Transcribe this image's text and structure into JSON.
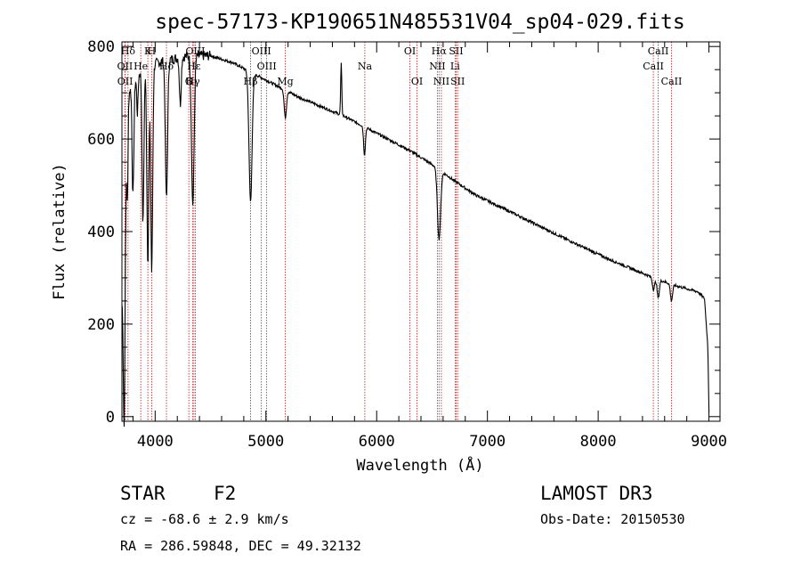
{
  "chart_data": {
    "type": "line",
    "title": "spec-57173-KP190651N485531V04_sp04-029.fits",
    "xlabel": "Wavelength (Å)",
    "ylabel": "Flux (relative)",
    "xlim": [
      3700,
      9100
    ],
    "ylim": [
      -10,
      810
    ],
    "xticks": [
      4000,
      5000,
      6000,
      7000,
      8000,
      9000
    ],
    "yticks": [
      0,
      200,
      400,
      600,
      800
    ],
    "continuum": [
      [
        3700,
        260
      ],
      [
        3760,
        700
      ],
      [
        3850,
        740
      ],
      [
        3950,
        760
      ],
      [
        4100,
        770
      ],
      [
        4300,
        780
      ],
      [
        4500,
        780
      ],
      [
        4700,
        765
      ],
      [
        4900,
        740
      ],
      [
        5100,
        715
      ],
      [
        5300,
        690
      ],
      [
        5500,
        670
      ],
      [
        5700,
        650
      ],
      [
        5900,
        625
      ],
      [
        6100,
        600
      ],
      [
        6300,
        575
      ],
      [
        6500,
        545
      ],
      [
        6700,
        510
      ],
      [
        6900,
        478
      ],
      [
        7100,
        455
      ],
      [
        7300,
        432
      ],
      [
        7500,
        408
      ],
      [
        7700,
        385
      ],
      [
        7900,
        362
      ],
      [
        8100,
        340
      ],
      [
        8300,
        320
      ],
      [
        8500,
        300
      ],
      [
        8700,
        283
      ],
      [
        8900,
        270
      ],
      [
        8960,
        255
      ],
      [
        8990,
        150
      ],
      [
        9000,
        10
      ]
    ],
    "absorption_features": [
      {
        "center": 3720,
        "depth": 420,
        "width": 8
      },
      {
        "center": 3750,
        "depth": 150,
        "width": 6
      },
      {
        "center": 3800,
        "depth": 240,
        "width": 8
      },
      {
        "center": 3840,
        "depth": 80,
        "width": 6
      },
      {
        "center": 3890,
        "depth": 330,
        "width": 8
      },
      {
        "center": 3934,
        "depth": 420,
        "width": 9
      },
      {
        "center": 3969,
        "depth": 450,
        "width": 9
      },
      {
        "center": 4102,
        "depth": 300,
        "width": 10
      },
      {
        "center": 4227,
        "depth": 100,
        "width": 8
      },
      {
        "center": 4340,
        "depth": 320,
        "width": 12
      },
      {
        "center": 4861,
        "depth": 280,
        "width": 14
      },
      {
        "center": 5175,
        "depth": 60,
        "width": 10
      },
      {
        "center": 5890,
        "depth": 60,
        "width": 8
      },
      {
        "center": 6563,
        "depth": 150,
        "width": 14
      },
      {
        "center": 8500,
        "depth": 25,
        "width": 10
      },
      {
        "center": 8542,
        "depth": 40,
        "width": 10
      },
      {
        "center": 8662,
        "depth": 35,
        "width": 10
      }
    ],
    "emission_features": [
      {
        "center": 5680,
        "height": 110,
        "width": 5
      }
    ],
    "spectral_lines": [
      {
        "label": "Hδ",
        "wavelength": 3755,
        "row": 1
      },
      {
        "label": "OII",
        "wavelength": 3727,
        "row": 2
      },
      {
        "label": "OII",
        "wavelength": 3729,
        "row": 3
      },
      {
        "label": "K",
        "wavelength": 3934,
        "row": 1
      },
      {
        "label": "He",
        "wavelength": 3870,
        "row": 2
      },
      {
        "label": "H",
        "wavelength": 3969,
        "row": 1
      },
      {
        "label": "Hδ",
        "wavelength": 4102,
        "row": 2
      },
      {
        "label": "Hγ",
        "wavelength": 4340,
        "row": 3
      },
      {
        "label": "OIII",
        "wavelength": 4363,
        "row": 1
      },
      {
        "label": "Hε",
        "wavelength": 4350,
        "row": 2
      },
      {
        "label": "G",
        "wavelength": 4304,
        "row": 3
      },
      {
        "label": "OIII",
        "wavelength": 4959,
        "row": 1
      },
      {
        "label": "OIII",
        "wavelength": 5007,
        "row": 2
      },
      {
        "label": "Hβ",
        "wavelength": 4861,
        "row": 3
      },
      {
        "label": "Mg",
        "wavelength": 5175,
        "row": 3
      },
      {
        "label": "Na",
        "wavelength": 5893,
        "row": 2
      },
      {
        "label": "OI",
        "wavelength": 6300,
        "row": 1
      },
      {
        "label": "OI",
        "wavelength": 6364,
        "row": 3
      },
      {
        "label": "Hα",
        "wavelength": 6563,
        "row": 1
      },
      {
        "label": "NII",
        "wavelength": 6548,
        "row": 2
      },
      {
        "label": "NII",
        "wavelength": 6584,
        "row": 3
      },
      {
        "label": "SII",
        "wavelength": 6717,
        "row": 1
      },
      {
        "label": "Li",
        "wavelength": 6708,
        "row": 2
      },
      {
        "label": "SII",
        "wavelength": 6731,
        "row": 3
      },
      {
        "label": "CaII",
        "wavelength": 8542,
        "row": 1
      },
      {
        "label": "CaII",
        "wavelength": 8498,
        "row": 2
      },
      {
        "label": "CaII",
        "wavelength": 8662,
        "row": 3
      }
    ]
  },
  "info": {
    "object_type": "STAR",
    "subclass": "F2",
    "survey": "LAMOST DR3",
    "cz": "cz = -68.6 ± 2.9 km/s",
    "obs_date": "Obs-Date: 20150530",
    "coords": "RA = 286.59848, DEC =  49.32132"
  },
  "colors": {
    "spectrum": "#000000",
    "line_markers": "#b22222"
  }
}
